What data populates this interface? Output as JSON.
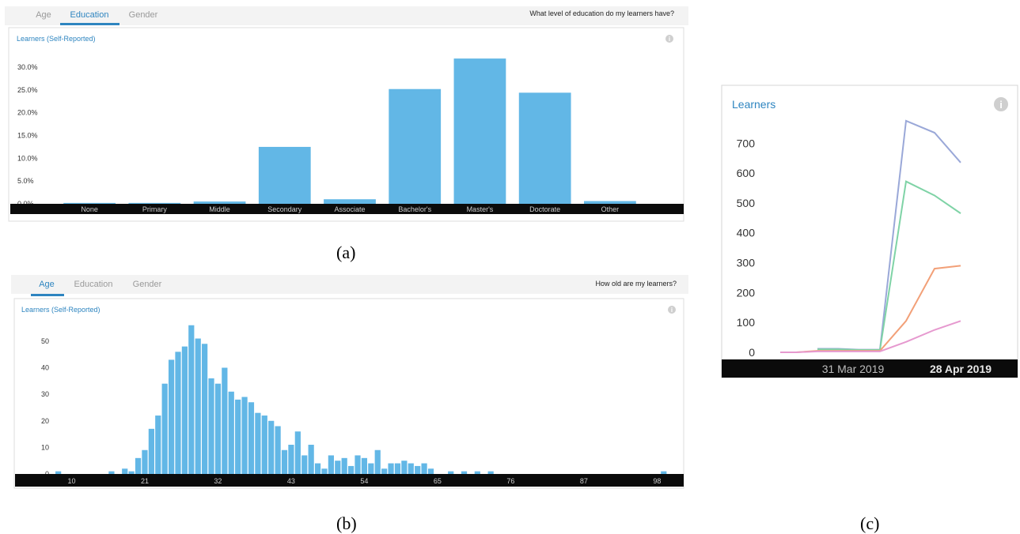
{
  "captions": {
    "a": "(a)",
    "b": "(b)",
    "c": "(c)"
  },
  "colors": {
    "bar": "#62b7e6",
    "tab_active": "#2e85c0",
    "tab_inactive": "#9a9a9a",
    "panel_border": "#dddddd",
    "header_bg": "#f2f2f2",
    "axis_bg": "#0b0b0b",
    "line_blue": "#9aa8d8",
    "line_green": "#7fd3a6",
    "line_orange": "#f2a078",
    "line_pink": "#e699cf"
  },
  "panel_a": {
    "tabs": [
      "Age",
      "Education",
      "Gender"
    ],
    "active_tab": 1,
    "question": "What level of education do my learners have?",
    "chart_title": "Learners (Self-Reported)",
    "info_icon": "info-icon",
    "chart_data": {
      "type": "bar",
      "title": "Learners (Self-Reported)",
      "categories": [
        "None",
        "Primary",
        "Middle",
        "Secondary",
        "Associate",
        "Bachelor's",
        "Master's",
        "Doctorate",
        "Other"
      ],
      "values": [
        0.2,
        0.2,
        0.5,
        12.5,
        1.0,
        25.2,
        31.9,
        24.4,
        0.6
      ],
      "ytick_labels": [
        "0.0%",
        "5.0%",
        "10.0%",
        "15.0%",
        "20.0%",
        "25.0%",
        "30.0%"
      ],
      "ylim": [
        0,
        34
      ],
      "ylabel": "",
      "xlabel": ""
    }
  },
  "panel_b": {
    "tabs": [
      "Age",
      "Education",
      "Gender"
    ],
    "active_tab": 0,
    "question": "How old are my learners?",
    "chart_title": "Learners (Self-Reported)",
    "info_icon": "info-icon",
    "chart_data": {
      "type": "bar",
      "title": "Learners (Self-Reported)",
      "x": [
        8,
        9,
        10,
        11,
        12,
        13,
        14,
        15,
        16,
        17,
        18,
        19,
        20,
        21,
        22,
        23,
        24,
        25,
        26,
        27,
        28,
        29,
        30,
        31,
        32,
        33,
        34,
        35,
        36,
        37,
        38,
        39,
        40,
        41,
        42,
        43,
        44,
        45,
        46,
        47,
        48,
        49,
        50,
        51,
        52,
        53,
        54,
        55,
        56,
        57,
        58,
        59,
        60,
        61,
        62,
        63,
        64,
        65,
        66,
        67,
        68,
        69,
        70,
        71,
        72,
        73,
        74,
        75,
        76,
        77,
        78,
        79,
        80,
        81,
        82,
        83,
        84,
        85,
        86,
        87,
        88,
        89,
        90,
        91,
        92,
        93,
        94,
        95,
        96,
        97,
        98,
        99
      ],
      "values": [
        1,
        0,
        0,
        0,
        0,
        0,
        0,
        0,
        1,
        0,
        2,
        1,
        6,
        9,
        17,
        22,
        34,
        43,
        46,
        48,
        56,
        51,
        49,
        36,
        34,
        40,
        31,
        28,
        29,
        27,
        23,
        22,
        20,
        18,
        9,
        11,
        16,
        7,
        11,
        4,
        2,
        7,
        5,
        6,
        3,
        7,
        6,
        4,
        9,
        2,
        4,
        4,
        5,
        4,
        3,
        4,
        2,
        0,
        0,
        1,
        0,
        1,
        0,
        1,
        0,
        1,
        0,
        0,
        0,
        0,
        0,
        0,
        0,
        0,
        0,
        0,
        0,
        0,
        0,
        0,
        0,
        0,
        0,
        0,
        0,
        0,
        0,
        0,
        0,
        0,
        0,
        1
      ],
      "xticks": [
        10,
        21,
        32,
        43,
        54,
        65,
        76,
        87,
        98
      ],
      "yticks": [
        0,
        10,
        20,
        30,
        40,
        50
      ],
      "ylim": [
        0,
        58
      ],
      "xlim": [
        1.5,
        102
      ],
      "ylabel": "",
      "xlabel": ""
    }
  },
  "panel_c": {
    "chart_title": "Learners",
    "info_icon": "info-icon",
    "chart_data": {
      "type": "line",
      "title": "Learners",
      "x": [
        "",
        "",
        "",
        "",
        "",
        "31 Mar 2019",
        "",
        "",
        "",
        "28 Apr 2019"
      ],
      "series": [
        {
          "values": [
            null,
            null,
            12,
            12,
            9,
            9,
            775,
            735,
            635,
            null
          ],
          "color": "#9aa8d8"
        },
        {
          "values": [
            null,
            null,
            10,
            10,
            8,
            8,
            572,
            525,
            465,
            null
          ],
          "color": "#7fd3a6"
        },
        {
          "values": [
            0,
            0,
            5,
            5,
            5,
            5,
            105,
            280,
            290,
            null
          ],
          "color": "#f2a078"
        },
        {
          "values": [
            0,
            0,
            3,
            3,
            3,
            3,
            35,
            75,
            105,
            null
          ],
          "color": "#e699cf"
        }
      ],
      "x_labels": [
        "31 Mar 2019",
        "28 Apr 2019"
      ],
      "yticks": [
        0,
        100,
        200,
        300,
        400,
        500,
        600,
        700
      ],
      "ylim": [
        0,
        780
      ],
      "ylabel": "",
      "xlabel": ""
    }
  }
}
